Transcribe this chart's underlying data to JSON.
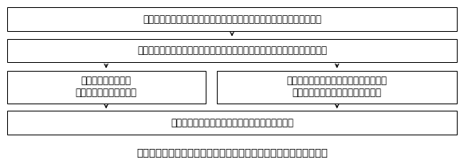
{
  "title": "図１　現地確認における航空機リモセンとモバイルＧＩＳの併用法",
  "box1_text": "航空機リモセン画像を用いて圃場一筆毎の水稲の作付・転作状況を判定",
  "box2_text": "生産調整実施計画書の申請内容と航空機リモセン画像による判定結果を照合",
  "box3a_text": "判定結果が一致した\n場合は、それを最終判定",
  "box3b_text": "不一致の場合はモバイルＧＩＳを用いて\n現地調査を実施し、それを最終判定",
  "box4_text": "両結果を用いて生産調整に関わる現地確認とする",
  "bg_color": "#ffffff",
  "box_facecolor": "#ffffff",
  "box_edgecolor": "#000000",
  "text_color": "#000000",
  "arrow_color": "#000000",
  "font_size": 8.5,
  "title_font_size": 9.5
}
